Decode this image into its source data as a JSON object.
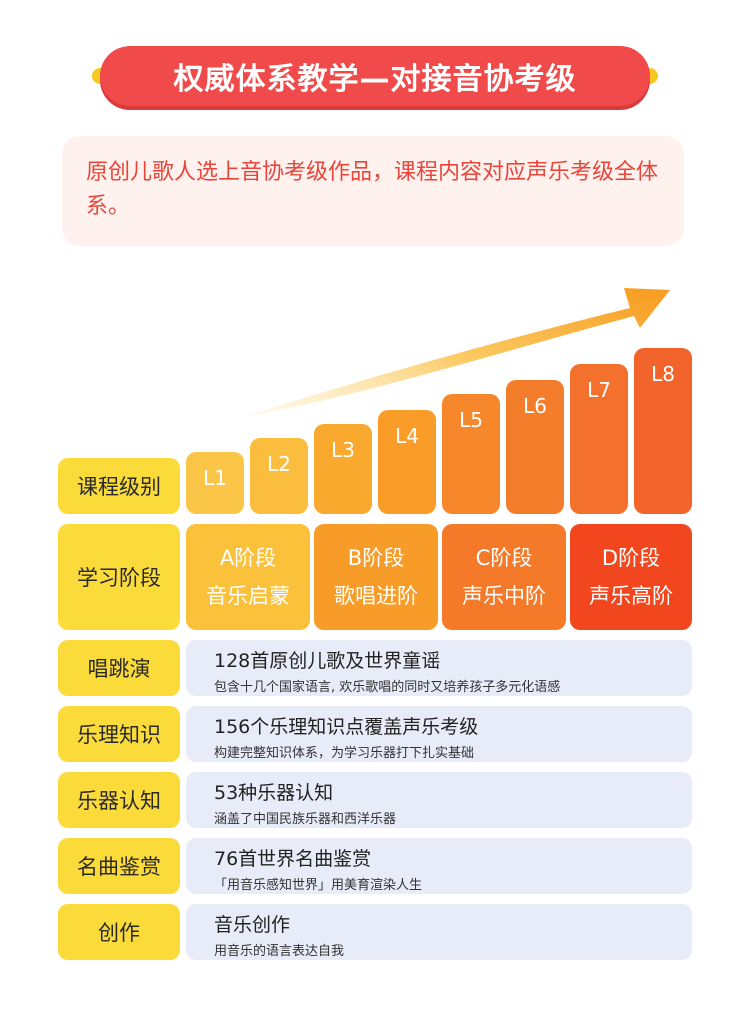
{
  "title": "权威体系教学—对接音协考级",
  "intro": "原创儿歌人选上音协考级作品，课程内容对应声乐考级全体系。",
  "colors": {
    "banner": "#f04a4a",
    "label_bg": "#fadb3a",
    "row_bg": "#e8ebf8",
    "intro_text": "#e8463a"
  },
  "levels": [
    "L1",
    "L2",
    "L3",
    "L4",
    "L5",
    "L6",
    "L7",
    "L8"
  ],
  "labels": {
    "level": "课程级别",
    "stage": "学习阶段",
    "sing": "唱跳演",
    "theory": "乐理知识",
    "instrument": "乐器认知",
    "appreciation": "名曲鉴赏",
    "creation": "创作"
  },
  "stages": [
    {
      "name": "A阶段",
      "desc": "音乐启蒙"
    },
    {
      "name": "B阶段",
      "desc": "歌唱进阶"
    },
    {
      "name": "C阶段",
      "desc": "声乐中阶"
    },
    {
      "name": "D阶段",
      "desc": "声乐高阶"
    }
  ],
  "rows": [
    {
      "title": "128首原创儿歌及世界童谣",
      "sub": "包含十几个国家语言, 欢乐歌唱的同时又培养孩子多元化语感"
    },
    {
      "title": "156个乐理知识点覆盖声乐考级",
      "sub": "构建完整知识体系，为学习乐器打下扎实基础"
    },
    {
      "title": "53种乐器认知",
      "sub": "涵盖了中国民族乐器和西洋乐器"
    },
    {
      "title": "76首世界名曲鉴赏",
      "sub": "「用音乐感知世界」用美育渲染人生"
    },
    {
      "title": "音乐创作",
      "sub": "用音乐的语言表达自我"
    }
  ]
}
